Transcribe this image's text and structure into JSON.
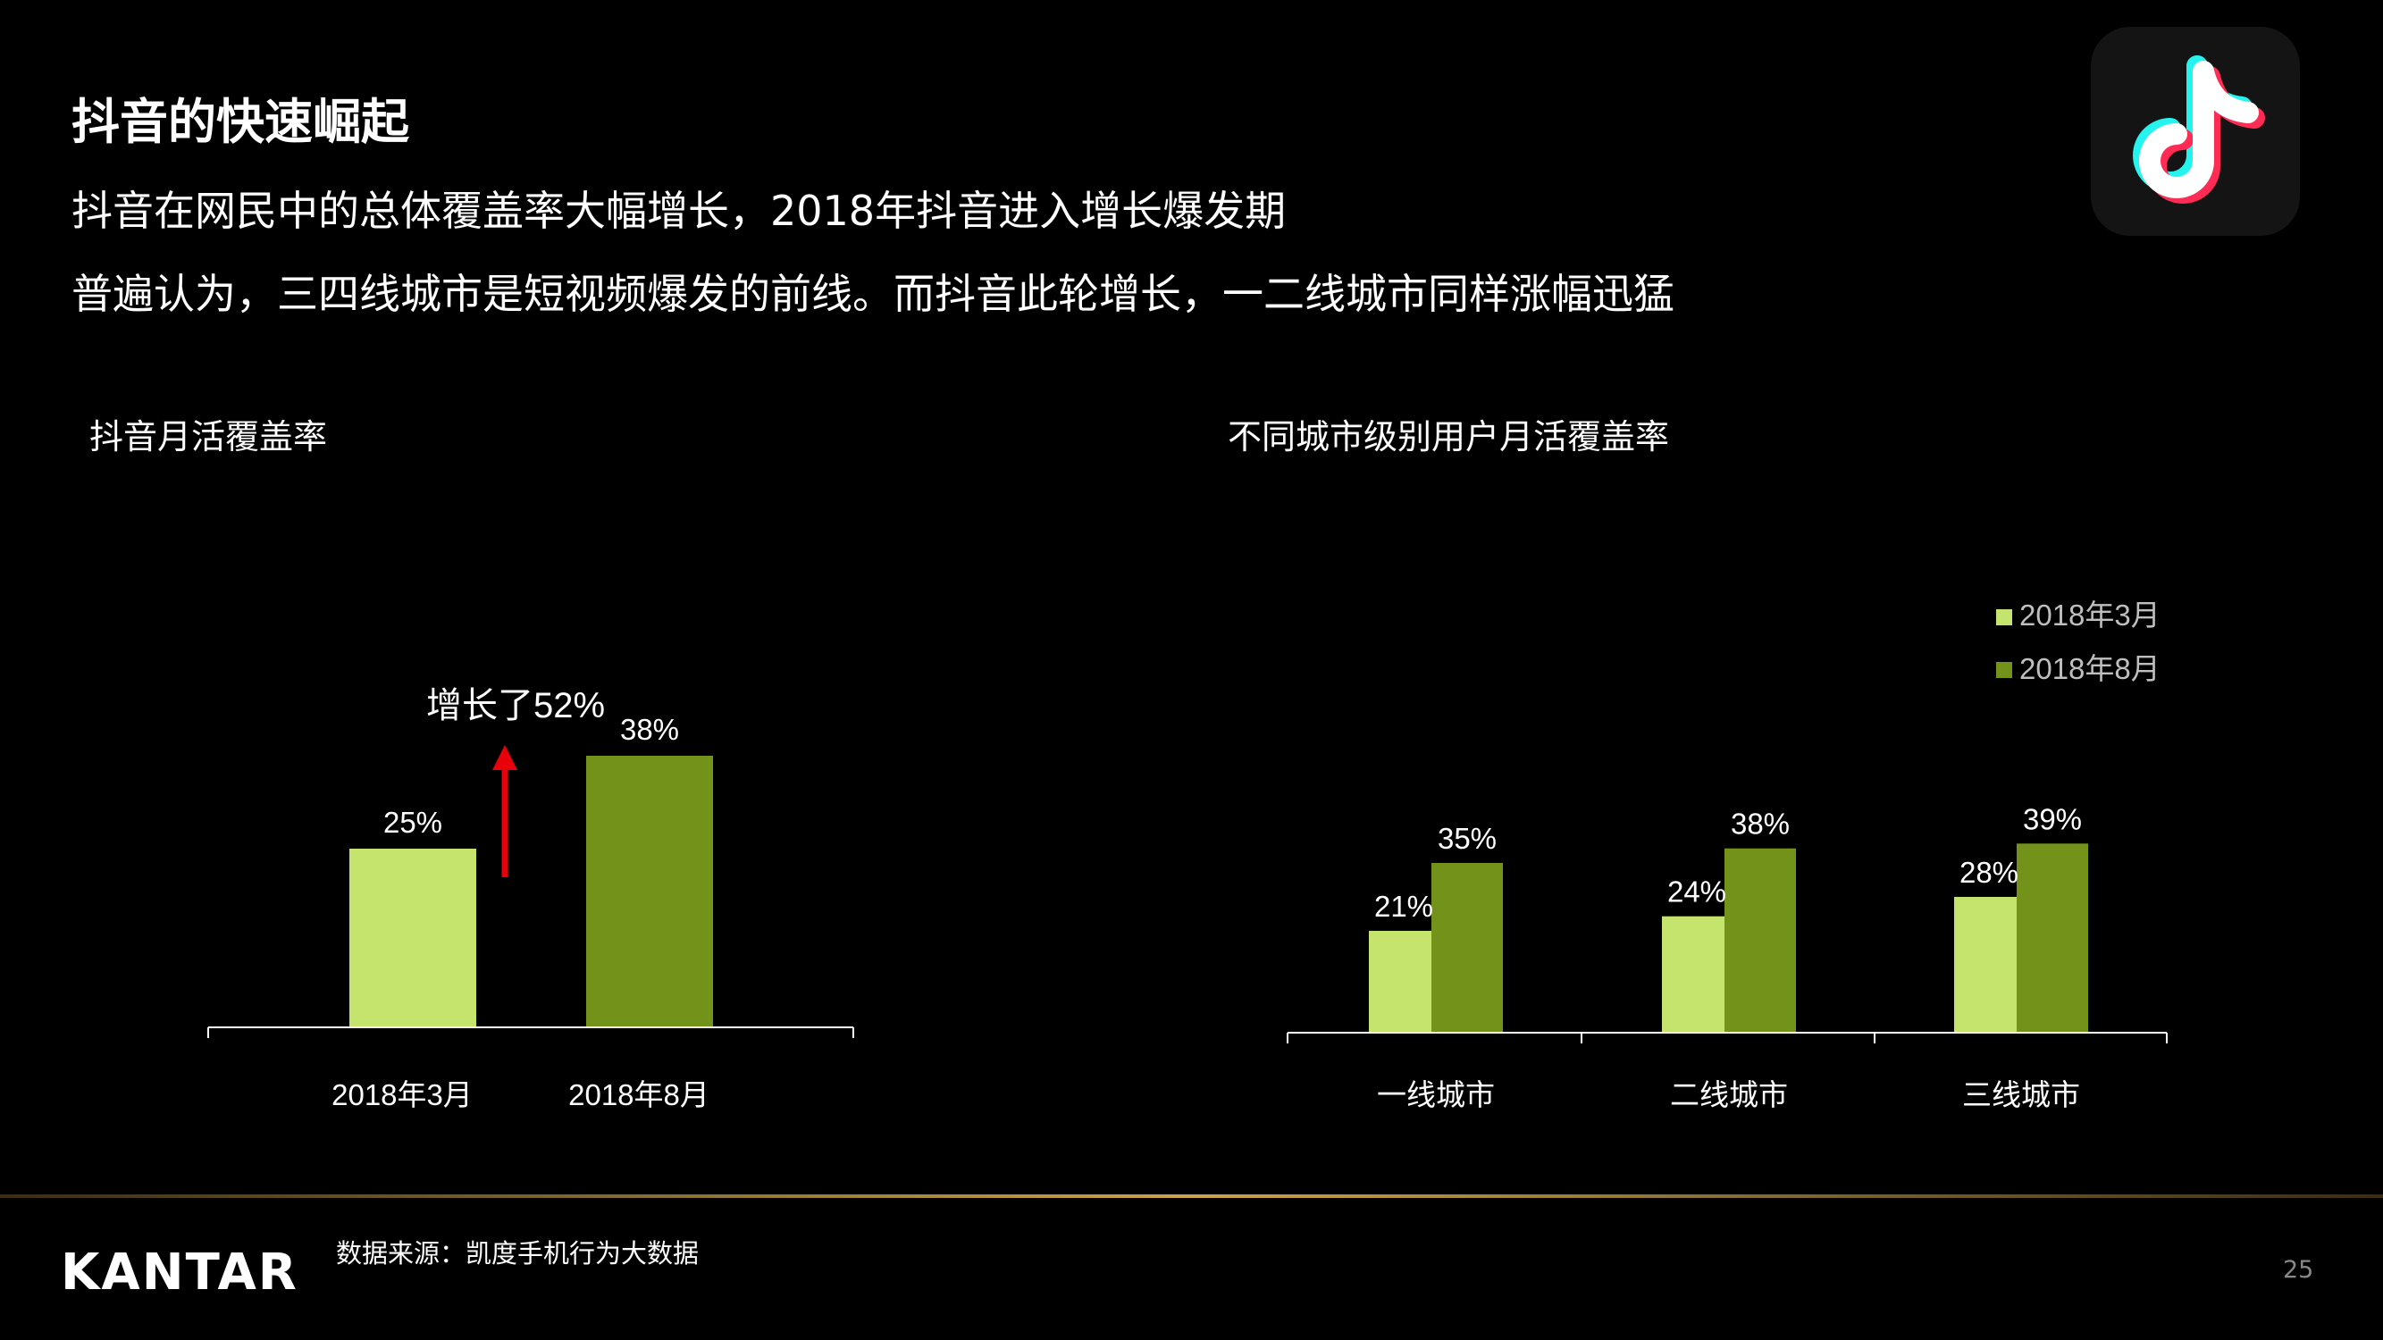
{
  "header": {
    "title": "抖音的快速崛起",
    "subtitle1": "抖音在网民中的总体覆盖率大幅增长，2018年抖音进入增长爆发期",
    "subtitle2": "普遍认为，三四线城市是短视频爆发的前线。而抖音此轮增长，一二线城市同样涨幅迅猛"
  },
  "logo": {
    "icon": "tiktok-logo-icon"
  },
  "colors": {
    "light_green": "#c5e46e",
    "dark_green": "#72921a",
    "arrow_red": "#e8000b"
  },
  "chart_data": [
    {
      "type": "bar",
      "title": "抖音月活覆盖率",
      "categories": [
        "2018年3月",
        "2018年8月"
      ],
      "values": [
        25,
        38
      ],
      "value_labels": [
        "25%",
        "38%"
      ],
      "ylim": [
        0,
        60
      ],
      "annotation": "增长了52%",
      "grid": false
    },
    {
      "type": "bar",
      "title": "不同城市级别用户月活覆盖率",
      "categories": [
        "一线城市",
        "二线城市",
        "三线城市"
      ],
      "series": [
        {
          "name": "2018年3月",
          "values": [
            21,
            24,
            28
          ],
          "value_labels": [
            "21%",
            "24%",
            "28%"
          ]
        },
        {
          "name": "2018年8月",
          "values": [
            35,
            38,
            39
          ],
          "value_labels": [
            "35%",
            "38%",
            "39%"
          ]
        }
      ],
      "ylim": [
        0,
        60
      ],
      "legend": "top-right",
      "grid": false
    }
  ],
  "footer": {
    "brand": "KANTAR",
    "source": "数据来源：凯度手机行为大数据",
    "page_number": "25"
  }
}
